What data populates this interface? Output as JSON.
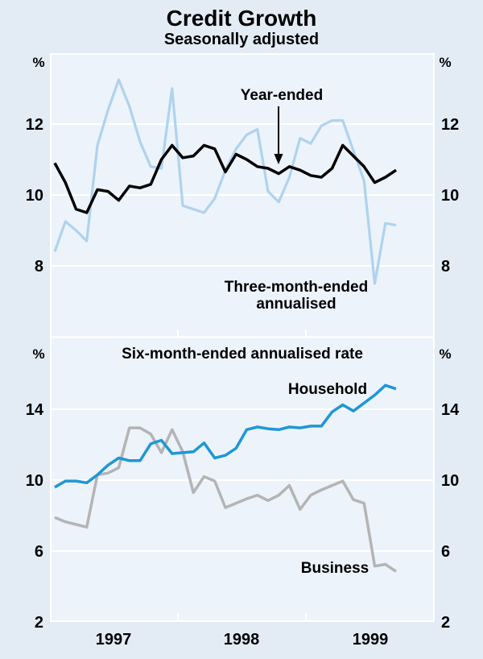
{
  "chart_data": {
    "type": "line",
    "title": "Credit Growth",
    "subtitle": "Seasonally adjusted",
    "x_axis": {
      "year_labels": [
        "1997",
        "1998",
        "1999"
      ],
      "interval": "monthly",
      "points_per_series": 33
    },
    "colors": {
      "background_outer": "#e3ecf5",
      "background_plot": "#edf3fa",
      "gridline": "#ffffff",
      "year_ended_line": "#000000",
      "three_month_line": "#aed3ef",
      "household_line": "#1e97d5",
      "business_line": "#b4b4b4"
    },
    "top_panel": {
      "unit": "%",
      "ylim": [
        6,
        14
      ],
      "gridlines": [
        8,
        10,
        12
      ],
      "tick_labels": [
        8,
        10,
        12
      ],
      "label_lines": [
        "Three-month-ended",
        "annualised"
      ],
      "series": [
        {
          "name": "Year-ended",
          "color": "#000000",
          "width": 3.5,
          "values": [
            10.9,
            10.35,
            9.6,
            9.5,
            10.15,
            10.1,
            9.85,
            10.25,
            10.2,
            10.3,
            11.0,
            11.4,
            11.05,
            11.1,
            11.4,
            11.3,
            10.65,
            11.15,
            11.0,
            10.8,
            10.75,
            10.6,
            10.8,
            10.7,
            10.55,
            10.5,
            10.75,
            11.4,
            11.1,
            10.8,
            10.35,
            10.5,
            10.7
          ]
        },
        {
          "name": "Three-month-ended annualised",
          "color": "#aed3ef",
          "width": 3.2,
          "values": [
            8.4,
            9.25,
            9.0,
            8.7,
            11.4,
            12.4,
            13.25,
            12.5,
            11.5,
            10.8,
            10.75,
            13.0,
            9.7,
            9.6,
            9.5,
            9.9,
            10.7,
            11.3,
            11.7,
            11.85,
            10.1,
            9.8,
            10.5,
            11.6,
            11.45,
            11.95,
            12.1,
            12.1,
            11.25,
            10.4,
            7.5,
            9.2,
            9.15
          ]
        }
      ]
    },
    "bottom_panel": {
      "title": "Six-month-ended annualised rate",
      "unit": "%",
      "ylim": [
        2,
        18
      ],
      "gridlines": [
        6,
        10,
        14
      ],
      "tick_labels": [
        2,
        6,
        10,
        14
      ],
      "series": [
        {
          "name": "Household",
          "color": "#1e97d5",
          "width": 3.5,
          "values": [
            9.6,
            9.95,
            9.95,
            9.85,
            10.3,
            10.85,
            11.25,
            11.1,
            11.1,
            12.05,
            12.25,
            11.5,
            11.55,
            11.6,
            12.1,
            11.25,
            11.4,
            11.8,
            12.85,
            13.0,
            12.9,
            12.85,
            13.0,
            12.95,
            13.05,
            13.05,
            13.85,
            14.25,
            13.9,
            14.35,
            14.8,
            15.35,
            15.15
          ]
        },
        {
          "name": "Business",
          "color": "#b4b4b4",
          "width": 3.5,
          "values": [
            7.9,
            7.65,
            7.5,
            7.35,
            10.3,
            10.4,
            10.7,
            12.95,
            12.95,
            12.6,
            11.55,
            12.85,
            11.6,
            9.3,
            10.2,
            9.95,
            8.45,
            8.7,
            8.95,
            9.15,
            8.85,
            9.15,
            9.7,
            8.35,
            9.15,
            9.45,
            9.7,
            9.95,
            8.9,
            8.7,
            5.15,
            5.25,
            4.85
          ]
        }
      ]
    }
  }
}
